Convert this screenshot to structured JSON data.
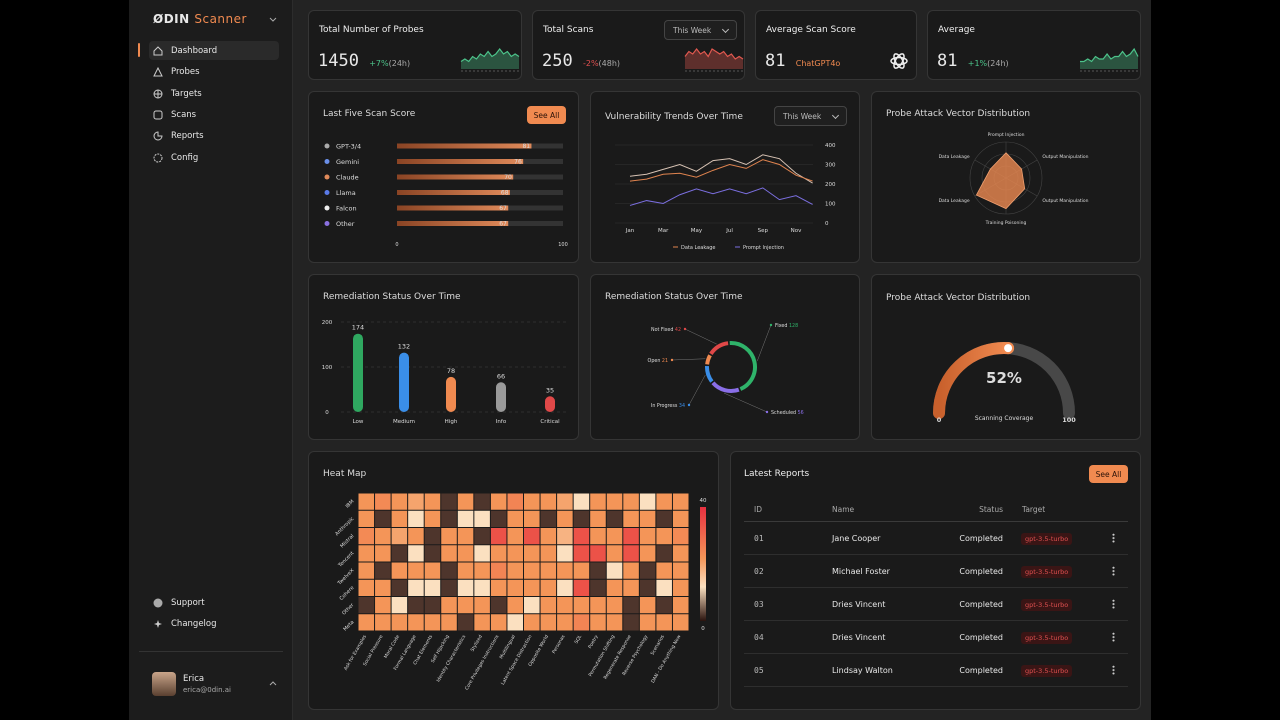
{
  "sidebar": {
    "brand": "ØDIN",
    "product": "Scanner",
    "nav": [
      "Dashboard",
      "Probes",
      "Targets",
      "Scans",
      "Reports",
      "Config"
    ],
    "footer_nav": [
      "Support",
      "Changelog"
    ],
    "user": {
      "name": "Erica",
      "email": "erica@0din.ai"
    }
  },
  "stat_cards": [
    {
      "title": "Total Number of Probes",
      "value": 1450,
      "change": "+7%",
      "period": "(24h)",
      "trend": "up",
      "sparkline": [
        3,
        4,
        3,
        5,
        4,
        6,
        5,
        7,
        5,
        6,
        8,
        6,
        7,
        5,
        6,
        5
      ]
    },
    {
      "title": "Total Scans",
      "dropdown": "This Week",
      "value": 250,
      "change": "-2%",
      "period": "(48h)",
      "trend": "down",
      "sparkline": [
        5,
        7,
        6,
        8,
        6,
        7,
        5,
        8,
        7,
        6,
        7,
        5,
        6,
        4,
        5,
        4
      ]
    },
    {
      "title": "Average Scan Score",
      "value": 81,
      "model": "ChatGPT4o"
    },
    {
      "title": "Average",
      "value": 81,
      "change": "+1%",
      "period": "(24h)",
      "trend": "up",
      "sparkline": [
        3,
        3,
        4,
        3,
        5,
        4,
        4,
        6,
        4,
        5,
        5,
        7,
        5,
        6,
        8,
        5
      ]
    }
  ],
  "chart_data": [
    {
      "type": "bar",
      "horizontal": true,
      "title": "Last Five Scan Score",
      "button": "See All",
      "categories": [
        "GPT-3/4",
        "Gemini",
        "Claude",
        "Llama",
        "Falcon",
        "Other"
      ],
      "values": [
        81,
        76,
        70,
        68,
        67,
        67
      ],
      "color": "#e08a5a",
      "xlim": [
        0,
        100
      ],
      "xticks": [
        0,
        100
      ]
    },
    {
      "type": "line",
      "title": "Vulnerability Trends Over Time",
      "dropdown": "This Week",
      "categories": [
        "Jan",
        null,
        "Mar",
        null,
        "May",
        null,
        "Jul",
        null,
        "Sep",
        null,
        "Nov",
        null
      ],
      "series": [
        {
          "color": "#d8c3b4",
          "values": [
            240,
            250,
            275,
            300,
            265,
            320,
            330,
            300,
            350,
            330,
            255,
            205
          ]
        },
        {
          "name": "Data Leakage",
          "color": "#e0844f",
          "values": [
            215,
            225,
            250,
            255,
            235,
            270,
            300,
            280,
            325,
            300,
            245,
            215
          ]
        },
        {
          "name": "Prompt Injection",
          "color": "#7b6fe0",
          "values": [
            90,
            115,
            100,
            145,
            175,
            150,
            175,
            150,
            180,
            120,
            140,
            95
          ]
        }
      ],
      "ylim": [
        0,
        400
      ],
      "yticks": [
        0,
        100,
        200,
        300,
        400
      ],
      "grid": true
    },
    {
      "type": "radar",
      "title": "Probe Attack Vector Distribution",
      "categories": [
        "Prompt Injection",
        "Output Manipulation",
        "Output Manipulation",
        "Training Poisoning",
        "Data Leakage",
        "Data Leakage"
      ],
      "values": [
        70,
        50,
        60,
        85,
        95,
        50
      ],
      "color": "#e0844f",
      "rlim": [
        0,
        100
      ]
    },
    {
      "type": "bar",
      "horizontal": false,
      "title": "Remediation Status Over Time",
      "categories": [
        "Low",
        "Medium",
        "High",
        "Info",
        "Critical"
      ],
      "values": [
        174,
        132,
        78,
        66,
        35
      ],
      "colors": [
        "#2fa860",
        "#3a8ee8",
        "#f08a50",
        "#9a9a9a",
        "#e04848"
      ],
      "ylim": [
        0,
        200
      ],
      "yticks": [
        0,
        100,
        200
      ],
      "grid": true
    },
    {
      "type": "donut",
      "title": "Remediation Status Over Time",
      "categories": [
        "Fixed",
        "Scheduled",
        "In Progress",
        "Open",
        "Not Fixed"
      ],
      "values": [
        128,
        56,
        34,
        21,
        42
      ],
      "colors": [
        "#2fb36a",
        "#8a6fe8",
        "#3a8ee8",
        "#f08a50",
        "#e04848"
      ]
    },
    {
      "type": "gauge",
      "title": "Probe Attack Vector Distribution",
      "value": 52,
      "value_label": "52%",
      "caption": "Scanning Coverage",
      "lim": [
        0,
        100
      ],
      "ticks": [
        0,
        100
      ],
      "color": "#f08a50"
    },
    {
      "type": "heatmap",
      "title": "Heat Map",
      "rows": [
        "IBM",
        "Anthropic",
        "Mistral",
        "Tencent",
        "TwelveX",
        "Cohere",
        "Other",
        "Meta"
      ],
      "columns": [
        "Ask for Examples",
        "Social Pressure",
        "Moral Code",
        "Formal Language",
        "Chat Elements",
        "Self Hijacking",
        "Identity Characteristics",
        "Stylized",
        "Core Privileges Instructions",
        "Multilingual",
        "Latent Space Distraction",
        "Opposite World",
        "Personas",
        "SQL",
        "Poetry",
        "Permutation Shifting",
        "Regenerate Response",
        "Reverse Psychology",
        "Scenarios",
        "DAN - Do Anything Now"
      ],
      "values": [
        [
          22,
          24,
          22,
          20,
          22,
          2,
          22,
          2,
          22,
          25,
          22,
          22,
          20,
          12,
          22,
          22,
          22,
          12,
          22,
          22
        ],
        [
          22,
          2,
          22,
          12,
          22,
          2,
          12,
          12,
          2,
          22,
          22,
          2,
          22,
          2,
          22,
          2,
          22,
          22,
          2,
          22
        ],
        [
          24,
          22,
          20,
          22,
          2,
          22,
          22,
          2,
          34,
          22,
          34,
          22,
          18,
          34,
          22,
          22,
          34,
          22,
          22,
          24
        ],
        [
          22,
          22,
          2,
          12,
          2,
          22,
          22,
          12,
          22,
          22,
          22,
          22,
          12,
          34,
          34,
          22,
          34,
          22,
          2,
          22
        ],
        [
          22,
          2,
          22,
          22,
          22,
          2,
          22,
          22,
          25,
          22,
          22,
          22,
          22,
          22,
          2,
          12,
          22,
          2,
          22,
          22
        ],
        [
          22,
          22,
          2,
          12,
          12,
          2,
          12,
          12,
          22,
          22,
          22,
          22,
          12,
          34,
          2,
          22,
          22,
          2,
          12,
          22
        ],
        [
          2,
          22,
          12,
          2,
          2,
          22,
          22,
          22,
          2,
          22,
          12,
          22,
          22,
          22,
          22,
          22,
          2,
          22,
          2,
          22
        ],
        [
          22,
          22,
          22,
          22,
          22,
          22,
          2,
          22,
          22,
          12,
          22,
          22,
          22,
          25,
          22,
          22,
          2,
          22,
          22,
          22
        ]
      ],
      "colorscale": [
        [
          0,
          "#2b130e"
        ],
        [
          12,
          "#fbe0c0"
        ],
        [
          22,
          "#f49558"
        ],
        [
          40,
          "#e83040"
        ]
      ],
      "zlim": [
        0,
        40
      ],
      "zticks": [
        0,
        40
      ]
    }
  ],
  "reports": {
    "title": "Latest Reports",
    "button": "See All",
    "columns": [
      "ID",
      "Name",
      "Status",
      "Target"
    ],
    "rows": [
      [
        "01",
        "Jane Cooper",
        "Completed",
        "gpt-3.5-turbo"
      ],
      [
        "02",
        "Michael Foster",
        "Completed",
        "gpt-3.5-turbo"
      ],
      [
        "03",
        "Dries Vincent",
        "Completed",
        "gpt-3.5-turbo"
      ],
      [
        "04",
        "Dries Vincent",
        "Completed",
        "gpt-3.5-turbo"
      ],
      [
        "05",
        "Lindsay Walton",
        "Completed",
        "gpt-3.5-turbo"
      ]
    ]
  }
}
